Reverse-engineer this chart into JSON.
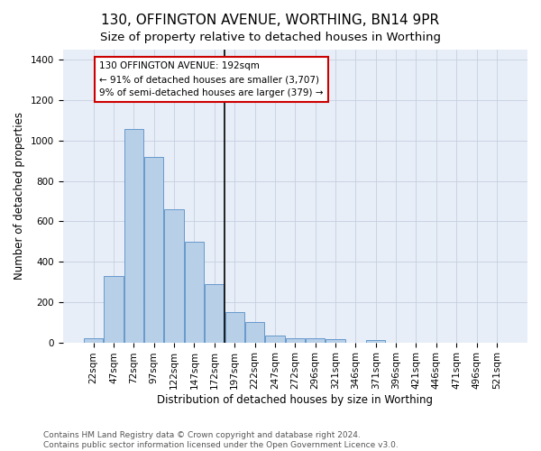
{
  "title": "130, OFFINGTON AVENUE, WORTHING, BN14 9PR",
  "subtitle": "Size of property relative to detached houses in Worthing",
  "xlabel": "Distribution of detached houses by size in Worthing",
  "ylabel": "Number of detached properties",
  "footer": "Contains HM Land Registry data © Crown copyright and database right 2024.\nContains public sector information licensed under the Open Government Licence v3.0.",
  "bar_values": [
    20,
    330,
    1055,
    920,
    660,
    500,
    290,
    150,
    100,
    35,
    22,
    22,
    15,
    0,
    12,
    0,
    0,
    0,
    0,
    0,
    0
  ],
  "bar_labels": [
    "22sqm",
    "47sqm",
    "72sqm",
    "97sqm",
    "122sqm",
    "147sqm",
    "172sqm",
    "197sqm",
    "222sqm",
    "247sqm",
    "272sqm",
    "296sqm",
    "321sqm",
    "346sqm",
    "371sqm",
    "396sqm",
    "421sqm",
    "446sqm",
    "471sqm",
    "496sqm",
    "521sqm"
  ],
  "bar_color": "#b8cfe8",
  "bar_edge_color": "#6699cc",
  "vline_color": "#000000",
  "annotation_text": "130 OFFINGTON AVENUE: 192sqm\n← 91% of detached houses are smaller (3,707)\n9% of semi-detached houses are larger (379) →",
  "annotation_box_color": "#ffffff",
  "annotation_box_edge": "#cc0000",
  "ylim": [
    0,
    1450
  ],
  "yticks": [
    0,
    200,
    400,
    600,
    800,
    1000,
    1200,
    1400
  ],
  "bg_color": "#e8eef8",
  "title_fontsize": 11,
  "subtitle_fontsize": 9.5,
  "axis_label_fontsize": 8.5,
  "tick_fontsize": 7.5,
  "footer_fontsize": 6.5
}
